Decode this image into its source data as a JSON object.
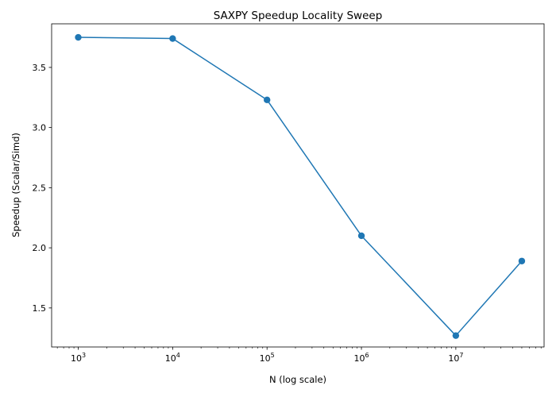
{
  "chart_data": {
    "type": "line",
    "title": "SAXPY Speedup Locality Sweep",
    "xlabel": "N (log scale)",
    "ylabel": "Speedup (Scalar/Simd)",
    "xscale": "log",
    "x_tick_labels": [
      "10^3",
      "10^4",
      "10^5",
      "10^6",
      "10^7"
    ],
    "y_ticks": [
      1.5,
      2.0,
      2.5,
      3.0,
      3.5
    ],
    "y_tick_labels": [
      "1.5",
      "2.0",
      "2.5",
      "3.0",
      "3.5"
    ],
    "grid": false,
    "legend": "none",
    "color": "#1f77b4",
    "series": [
      {
        "x": [
          1000,
          10000,
          100000,
          1000000,
          10000000,
          50000000
        ],
        "y": [
          3.75,
          3.74,
          3.23,
          2.1,
          1.27,
          1.89
        ]
      }
    ]
  }
}
